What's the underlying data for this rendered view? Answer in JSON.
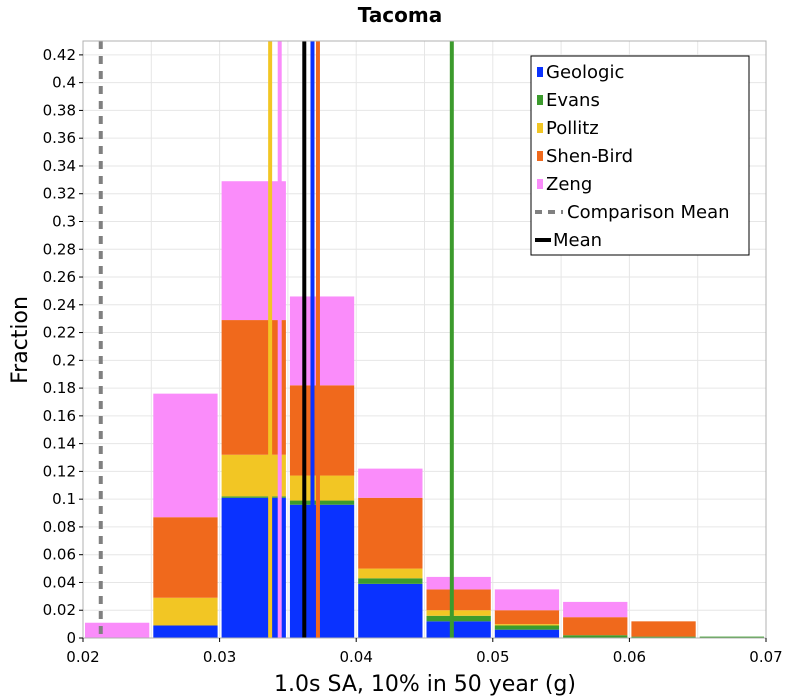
{
  "chart_data": {
    "type": "bar",
    "title": "Tacoma",
    "xlabel": "1.0s SA, 10% in 50 year (g)",
    "ylabel": "Fraction",
    "xlim": [
      0.02,
      0.07
    ],
    "ylim": [
      0,
      0.43
    ],
    "x_ticks": [
      "0.02",
      "0.03",
      "0.04",
      "0.05",
      "0.06",
      "0.07"
    ],
    "y_ticks": [
      "0",
      "0.02",
      "0.04",
      "0.06",
      "0.08",
      "0.1",
      "0.12",
      "0.14",
      "0.16",
      "0.18",
      "0.2",
      "0.22",
      "0.24",
      "0.26",
      "0.28",
      "0.3",
      "0.32",
      "0.34",
      "0.36",
      "0.38",
      "0.4",
      "0.42"
    ],
    "grid": true,
    "stacked": true,
    "legend_position": "top-right",
    "bins": [
      [
        0.02,
        0.025
      ],
      [
        0.025,
        0.03
      ],
      [
        0.03,
        0.035
      ],
      [
        0.035,
        0.04
      ],
      [
        0.04,
        0.045
      ],
      [
        0.045,
        0.05
      ],
      [
        0.05,
        0.055
      ],
      [
        0.055,
        0.06
      ],
      [
        0.06,
        0.065
      ],
      [
        0.065,
        0.07
      ]
    ],
    "series": [
      {
        "name": "Geologic",
        "color": "#0a32ff",
        "values": [
          0,
          0.009,
          0.101,
          0.096,
          0.039,
          0.012,
          0.006,
          0,
          0,
          0
        ]
      },
      {
        "name": "Evans",
        "color": "#3c9b2d",
        "values": [
          0,
          0,
          0.001,
          0.003,
          0.004,
          0.004,
          0.003,
          0.002,
          0.001,
          0.001
        ]
      },
      {
        "name": "Pollitz",
        "color": "#f2c624",
        "values": [
          0,
          0.02,
          0.03,
          0.018,
          0.007,
          0.004,
          0.001,
          0,
          0,
          0
        ]
      },
      {
        "name": "Shen-Bird",
        "color": "#f0691c",
        "values": [
          0,
          0.058,
          0.097,
          0.065,
          0.051,
          0.015,
          0.01,
          0.013,
          0.011,
          0
        ]
      },
      {
        "name": "Zeng",
        "color": "#fa8cfa",
        "values": [
          0.011,
          0.089,
          0.1,
          0.064,
          0.021,
          0.009,
          0.015,
          0.011,
          0,
          0
        ]
      }
    ],
    "mean_lines": [
      {
        "name": "Geologic",
        "x": 0.0368,
        "color": "#0a32ff"
      },
      {
        "name": "Evans",
        "x": 0.047,
        "color": "#3c9b2d"
      },
      {
        "name": "Pollitz",
        "x": 0.0337,
        "color": "#f2c624"
      },
      {
        "name": "Shen-Bird",
        "x": 0.0372,
        "color": "#f0691c"
      },
      {
        "name": "Zeng",
        "x": 0.0344,
        "color": "#fa8cfa"
      }
    ],
    "comparison_mean": {
      "name": "Comparison Mean",
      "x": 0.0213,
      "color": "#808080"
    },
    "mean": {
      "name": "Mean",
      "x": 0.0362,
      "color": "#000000"
    }
  }
}
